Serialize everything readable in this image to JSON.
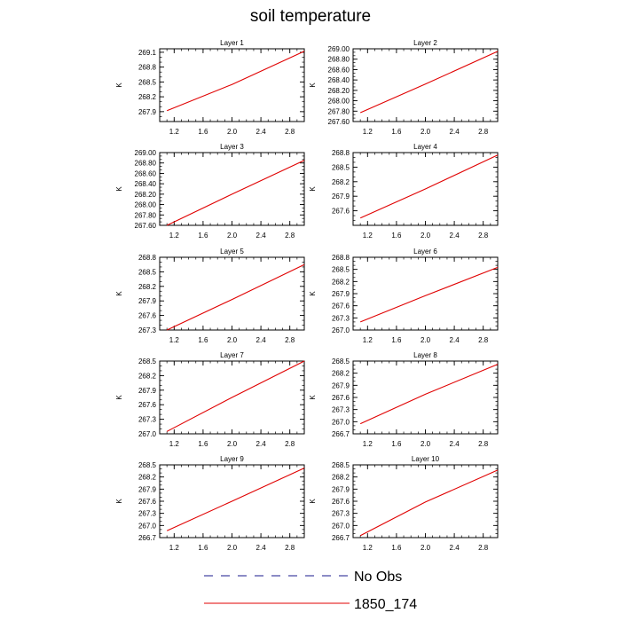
{
  "title": "soil temperature",
  "legend": {
    "entries": [
      {
        "label": "No Obs",
        "style": "dashed",
        "color": "#1a1a8c"
      },
      {
        "label": "1850_174",
        "style": "solid",
        "color": "#e00000"
      }
    ]
  },
  "line_color": "#e00000",
  "chart_data": [
    {
      "type": "line",
      "title": "Layer 1",
      "ylabel": "K",
      "xlim": [
        1.0,
        3.0
      ],
      "xticks": [
        "1.2",
        "1.6",
        "2.0",
        "2.4",
        "2.8"
      ],
      "ylim": [
        267.7,
        269.17
      ],
      "yticks": [
        "267.9",
        "268.2",
        "268.5",
        "268.8",
        "269.1"
      ],
      "series": [
        {
          "x": [
            1.1,
            2.0,
            3.0
          ],
          "y": [
            267.92,
            268.45,
            269.12
          ]
        }
      ]
    },
    {
      "type": "line",
      "title": "Layer 2",
      "ylabel": "K",
      "xlim": [
        1.0,
        3.0
      ],
      "xticks": [
        "1.2",
        "1.6",
        "2.0",
        "2.4",
        "2.8"
      ],
      "ylim": [
        267.6,
        269.0
      ],
      "yticks": [
        "267.60",
        "267.80",
        "268.00",
        "268.20",
        "268.40",
        "268.60",
        "268.80",
        "269.00"
      ],
      "series": [
        {
          "x": [
            1.1,
            2.0,
            3.0
          ],
          "y": [
            267.77,
            268.32,
            268.95
          ]
        }
      ]
    },
    {
      "type": "line",
      "title": "Layer 3",
      "ylabel": "K",
      "xlim": [
        1.0,
        3.0
      ],
      "xticks": [
        "1.2",
        "1.6",
        "2.0",
        "2.4",
        "2.8"
      ],
      "ylim": [
        267.6,
        269.0
      ],
      "yticks": [
        "267.60",
        "267.80",
        "268.00",
        "268.20",
        "268.40",
        "268.60",
        "268.80",
        "269.00"
      ],
      "series": [
        {
          "x": [
            1.1,
            2.0,
            3.0
          ],
          "y": [
            267.6,
            268.2,
            268.85
          ]
        }
      ]
    },
    {
      "type": "line",
      "title": "Layer 4",
      "ylabel": "K",
      "xlim": [
        1.0,
        3.0
      ],
      "xticks": [
        "1.2",
        "1.6",
        "2.0",
        "2.4",
        "2.8"
      ],
      "ylim": [
        267.3,
        268.8
      ],
      "yticks": [
        "267.6",
        "267.9",
        "268.2",
        "268.5",
        "268.8"
      ],
      "series": [
        {
          "x": [
            1.1,
            2.0,
            3.0
          ],
          "y": [
            267.45,
            268.05,
            268.75
          ]
        }
      ]
    },
    {
      "type": "line",
      "title": "Layer 5",
      "ylabel": "K",
      "xlim": [
        1.0,
        3.0
      ],
      "xticks": [
        "1.2",
        "1.6",
        "2.0",
        "2.4",
        "2.8"
      ],
      "ylim": [
        267.3,
        268.8
      ],
      "yticks": [
        "267.3",
        "267.6",
        "267.9",
        "268.2",
        "268.5",
        "268.8"
      ],
      "series": [
        {
          "x": [
            1.1,
            2.0,
            3.0
          ],
          "y": [
            267.3,
            267.93,
            268.65
          ]
        }
      ]
    },
    {
      "type": "line",
      "title": "Layer 6",
      "ylabel": "K",
      "xlim": [
        1.0,
        3.0
      ],
      "xticks": [
        "1.2",
        "1.6",
        "2.0",
        "2.4",
        "2.8"
      ],
      "ylim": [
        267.0,
        268.8
      ],
      "yticks": [
        "267.0",
        "267.3",
        "267.6",
        "267.9",
        "268.2",
        "268.5",
        "268.8"
      ],
      "series": [
        {
          "x": [
            1.1,
            2.0,
            3.0
          ],
          "y": [
            267.2,
            267.85,
            268.55
          ]
        }
      ]
    },
    {
      "type": "line",
      "title": "Layer 7",
      "ylabel": "K",
      "xlim": [
        1.0,
        3.0
      ],
      "xticks": [
        "1.2",
        "1.6",
        "2.0",
        "2.4",
        "2.8"
      ],
      "ylim": [
        267.0,
        268.5
      ],
      "yticks": [
        "267.0",
        "267.3",
        "267.6",
        "267.9",
        "268.2",
        "268.5"
      ],
      "series": [
        {
          "x": [
            1.1,
            2.0,
            3.0
          ],
          "y": [
            267.05,
            267.75,
            268.5
          ]
        }
      ]
    },
    {
      "type": "line",
      "title": "Layer 8",
      "ylabel": "K",
      "xlim": [
        1.0,
        3.0
      ],
      "xticks": [
        "1.2",
        "1.6",
        "2.0",
        "2.4",
        "2.8"
      ],
      "ylim": [
        266.7,
        268.5
      ],
      "yticks": [
        "266.7",
        "267.0",
        "267.3",
        "267.6",
        "267.9",
        "268.2",
        "268.5"
      ],
      "series": [
        {
          "x": [
            1.1,
            2.0,
            3.0
          ],
          "y": [
            266.95,
            267.68,
            268.42
          ]
        }
      ]
    },
    {
      "type": "line",
      "title": "Layer 9",
      "ylabel": "K",
      "xlim": [
        1.0,
        3.0
      ],
      "xticks": [
        "1.2",
        "1.6",
        "2.0",
        "2.4",
        "2.8"
      ],
      "ylim": [
        266.7,
        268.5
      ],
      "yticks": [
        "266.7",
        "267.0",
        "267.3",
        "267.6",
        "267.9",
        "268.2",
        "268.5"
      ],
      "series": [
        {
          "x": [
            1.1,
            2.0,
            3.0
          ],
          "y": [
            266.87,
            267.6,
            268.42
          ]
        }
      ]
    },
    {
      "type": "line",
      "title": "Layer 10",
      "ylabel": "K",
      "xlim": [
        1.0,
        3.0
      ],
      "xticks": [
        "1.2",
        "1.6",
        "2.0",
        "2.4",
        "2.8"
      ],
      "ylim": [
        266.7,
        268.5
      ],
      "yticks": [
        "266.7",
        "267.0",
        "267.3",
        "267.6",
        "267.9",
        "268.2",
        "268.5"
      ],
      "series": [
        {
          "x": [
            1.1,
            2.0,
            3.0
          ],
          "y": [
            266.75,
            267.58,
            268.37
          ]
        }
      ]
    }
  ]
}
